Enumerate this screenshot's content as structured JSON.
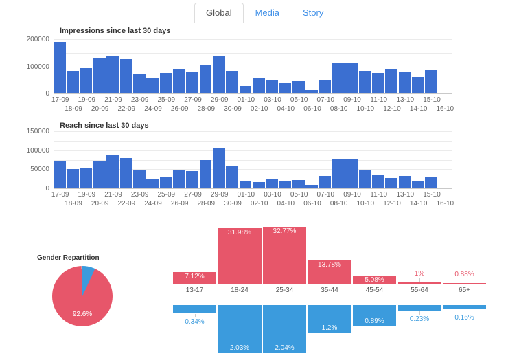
{
  "tabs": [
    {
      "label": "Global",
      "active": true
    },
    {
      "label": "Media",
      "active": false
    },
    {
      "label": "Story",
      "active": false
    }
  ],
  "colors": {
    "bar_blue": "#3b6fd1",
    "age_red": "#e7566a",
    "age_blue": "#3b9bdd",
    "pie_gray": "#cccccc",
    "tab_link_blue": "#4090e8",
    "active_tab_text": "#555555",
    "axis_label_gray": "#666666"
  },
  "chart_data": [
    {
      "id": "impressions",
      "type": "bar",
      "title": "Impressions since last 30 days",
      "color": "#3b6fd1",
      "ylim": [
        0,
        200000
      ],
      "yticks": [
        0,
        100000,
        200000
      ],
      "grid_step": 50000,
      "legend": "none",
      "categories": [
        "17-09",
        "18-09",
        "19-09",
        "20-09",
        "21-09",
        "22-09",
        "23-09",
        "24-09",
        "25-09",
        "26-09",
        "27-09",
        "28-09",
        "29-09",
        "30-09",
        "01-10",
        "02-10",
        "03-10",
        "04-10",
        "05-10",
        "06-10",
        "07-10",
        "08-10",
        "09-10",
        "10-10",
        "11-10",
        "12-10",
        "13-10",
        "14-10",
        "15-10",
        "16-10"
      ],
      "values": [
        190000,
        80000,
        93000,
        130000,
        140000,
        127000,
        70000,
        57000,
        76000,
        91000,
        78000,
        107000,
        137000,
        82000,
        27000,
        55000,
        52000,
        38000,
        45000,
        13000,
        50000,
        113000,
        111000,
        80000,
        75000,
        88000,
        78000,
        62000,
        86000,
        3000
      ]
    },
    {
      "id": "reach",
      "type": "bar",
      "title": "Reach since last 30 days",
      "color": "#3b6fd1",
      "ylim": [
        0,
        150000
      ],
      "yticks": [
        0,
        50000,
        100000,
        150000
      ],
      "grid_step": 25000,
      "legend": "none",
      "categories": [
        "17-09",
        "18-09",
        "19-09",
        "20-09",
        "21-09",
        "22-09",
        "23-09",
        "24-09",
        "25-09",
        "26-09",
        "27-09",
        "28-09",
        "29-09",
        "30-09",
        "01-10",
        "02-10",
        "03-10",
        "04-10",
        "05-10",
        "06-10",
        "07-10",
        "08-10",
        "09-10",
        "10-10",
        "11-10",
        "12-10",
        "13-10",
        "14-10",
        "15-10",
        "16-10"
      ],
      "values": [
        72000,
        50000,
        54000,
        73000,
        87000,
        79000,
        47000,
        23000,
        31000,
        47000,
        45000,
        75000,
        106000,
        58000,
        19000,
        16000,
        25000,
        18000,
        21000,
        10000,
        33000,
        76000,
        76000,
        48000,
        37000,
        27000,
        32000,
        18000,
        30000,
        2000
      ]
    },
    {
      "id": "gender",
      "type": "pie",
      "title": "Gender Repartition",
      "slices": [
        {
          "name": "blue-slice",
          "value": 6.9,
          "color": "#3b9bdd",
          "label": ""
        },
        {
          "name": "red-slice",
          "value": 92.6,
          "color": "#e7566a",
          "label": "92.6%"
        },
        {
          "name": "gray-slice",
          "value": 0.5,
          "color": "#cccccc",
          "label": ""
        }
      ]
    },
    {
      "id": "age-distribution",
      "type": "bar",
      "categories": [
        "13-17",
        "18-24",
        "25-34",
        "35-44",
        "45-54",
        "55-64",
        "65+"
      ],
      "series": [
        {
          "name": "red-top",
          "color": "#e7566a",
          "values": [
            7.12,
            31.98,
            32.77,
            13.78,
            5.08,
            1,
            0.88
          ],
          "labels": [
            "7.12%",
            "31.98%",
            "32.77%",
            "13.78%",
            "5.08%",
            "1%",
            "0.88%"
          ]
        },
        {
          "name": "blue-bottom",
          "color": "#3b9bdd",
          "values": [
            0.34,
            2.03,
            2.04,
            1.2,
            0.89,
            0.23,
            0.16
          ],
          "labels": [
            "0.34%",
            "2.03%",
            "2.04%",
            "1.2%",
            "0.89%",
            "0.23%",
            "0.16%"
          ]
        }
      ]
    }
  ]
}
